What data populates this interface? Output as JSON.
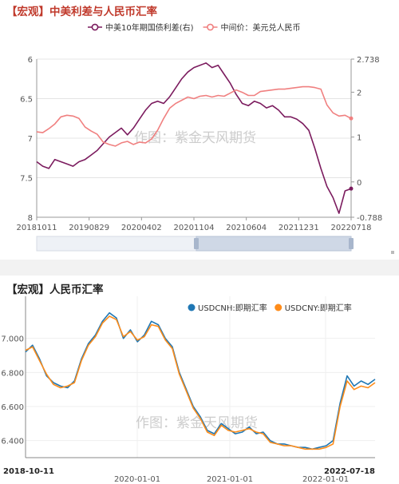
{
  "panel1": {
    "title": "【宏观】中美利差与人民币汇率",
    "watermark": "作图：紫金天风期货",
    "legend": [
      {
        "name": "中美10年期国债利差(右)",
        "color": "#7b1b5e"
      },
      {
        "name": "中间价：美元兑人民币",
        "color": "#f08080"
      }
    ]
  },
  "panel2": {
    "title": "【宏观】人民币汇率",
    "watermark": "作图：紫金天风期货",
    "legend": [
      {
        "name": "USDCNH:即期汇率",
        "color": "#1f77b4"
      },
      {
        "name": "USDCNY:即期汇率",
        "color": "#ff8c1a"
      }
    ]
  },
  "chart_data": [
    {
      "type": "line",
      "title": "【宏观】中美利差与人民币汇率",
      "x_ticks": [
        "20181011",
        "20190829",
        "20200402",
        "20201104",
        "20210604",
        "20211231",
        "20220718"
      ],
      "y_left": {
        "ticks": [
          "6",
          "6.5",
          "7",
          "7.5",
          "8"
        ],
        "range": [
          8,
          6
        ],
        "inverted": true
      },
      "y_right": {
        "ticks": [
          "-0.788",
          "0",
          "1",
          "2",
          "2.738"
        ],
        "range": [
          -0.788,
          2.738
        ]
      },
      "series": [
        {
          "name": "中美10年期国债利差(右)",
          "axis": "right",
          "color": "#7b1b5e",
          "values": [
            0.45,
            0.35,
            0.3,
            0.5,
            0.45,
            0.4,
            0.35,
            0.45,
            0.5,
            0.6,
            0.7,
            0.85,
            1.0,
            1.1,
            1.2,
            1.05,
            1.2,
            1.4,
            1.6,
            1.75,
            1.8,
            1.75,
            1.9,
            2.1,
            2.3,
            2.45,
            2.55,
            2.6,
            2.65,
            2.55,
            2.6,
            2.4,
            2.2,
            1.95,
            1.75,
            1.7,
            1.8,
            1.75,
            1.65,
            1.7,
            1.6,
            1.45,
            1.45,
            1.4,
            1.3,
            1.15,
            0.75,
            0.3,
            -0.1,
            -0.35,
            -0.7,
            -0.2,
            -0.15
          ]
        },
        {
          "name": "中间价：美元兑人民币",
          "axis": "left",
          "color": "#f08080",
          "values": [
            6.92,
            6.93,
            6.88,
            6.82,
            6.73,
            6.71,
            6.72,
            6.75,
            6.86,
            6.91,
            6.95,
            7.05,
            7.08,
            7.1,
            7.06,
            7.04,
            7.08,
            7.05,
            7.06,
            7.01,
            6.9,
            6.75,
            6.62,
            6.56,
            6.52,
            6.48,
            6.5,
            6.47,
            6.46,
            6.48,
            6.46,
            6.47,
            6.43,
            6.39,
            6.42,
            6.46,
            6.46,
            6.41,
            6.4,
            6.39,
            6.38,
            6.38,
            6.37,
            6.36,
            6.35,
            6.35,
            6.36,
            6.38,
            6.58,
            6.68,
            6.72,
            6.71,
            6.75
          ]
        }
      ]
    },
    {
      "type": "line",
      "title": "【宏观】人民币汇率",
      "x_ticks": [
        "2018-10-11",
        "2020-01-01",
        "2021-01-01",
        "2022-01-01",
        "2022-07-18"
      ],
      "y_ticks": [
        "6.400",
        "6.600",
        "6.800",
        "7.000"
      ],
      "ylim": [
        6.3,
        7.2
      ],
      "series": [
        {
          "name": "USDCNH:即期汇率",
          "color": "#1f77b4",
          "values": [
            6.92,
            6.96,
            6.88,
            6.78,
            6.74,
            6.72,
            6.71,
            6.75,
            6.88,
            6.97,
            7.02,
            7.1,
            7.15,
            7.12,
            7.0,
            7.05,
            6.98,
            7.02,
            7.1,
            7.08,
            7.0,
            6.95,
            6.8,
            6.7,
            6.6,
            6.54,
            6.46,
            6.44,
            6.5,
            6.47,
            6.44,
            6.45,
            6.48,
            6.44,
            6.45,
            6.4,
            6.38,
            6.38,
            6.37,
            6.36,
            6.36,
            6.35,
            6.36,
            6.37,
            6.4,
            6.62,
            6.78,
            6.72,
            6.75,
            6.73,
            6.76
          ]
        },
        {
          "name": "USDCNY:即期汇率",
          "color": "#ff8c1a",
          "values": [
            6.93,
            6.95,
            6.87,
            6.79,
            6.73,
            6.71,
            6.72,
            6.74,
            6.87,
            6.96,
            7.01,
            7.09,
            7.13,
            7.11,
            7.01,
            7.04,
            6.99,
            7.01,
            7.08,
            7.07,
            6.99,
            6.94,
            6.79,
            6.69,
            6.59,
            6.53,
            6.45,
            6.43,
            6.49,
            6.46,
            6.45,
            6.46,
            6.47,
            6.45,
            6.44,
            6.39,
            6.38,
            6.37,
            6.37,
            6.36,
            6.35,
            6.35,
            6.35,
            6.36,
            6.38,
            6.6,
            6.75,
            6.7,
            6.72,
            6.71,
            6.74
          ]
        }
      ]
    }
  ]
}
